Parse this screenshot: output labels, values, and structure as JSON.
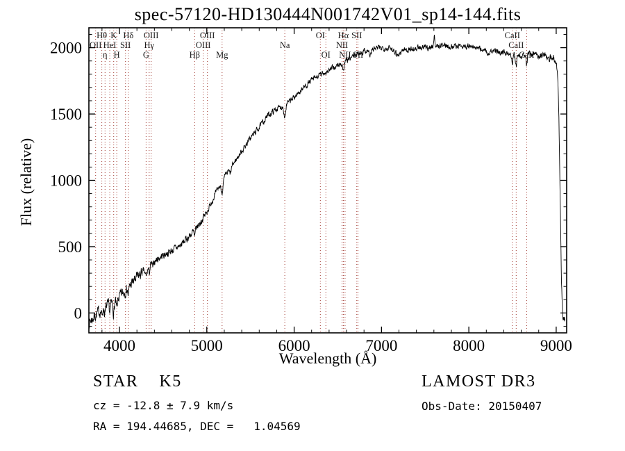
{
  "title": "spec-57120-HD130444N001742V01_sp14-144.fits",
  "annotations": {
    "class_label": "STAR    K5",
    "survey": "LAMOST DR3",
    "cz": "cz = -12.8 ± 7.9 km/s",
    "obs_date": "Obs-Date: 20150407",
    "coords": "RA = 194.44685, DEC =   1.04569"
  },
  "chart_data": {
    "type": "line",
    "title": "spec-57120-HD130444N001742V01_sp14-144.fits",
    "xlabel": "Wavelength (Å)",
    "ylabel": "Flux (relative)",
    "xlim": [
      3650,
      9120
    ],
    "ylim": [
      -150,
      2150
    ],
    "xticks": [
      4000,
      5000,
      6000,
      7000,
      8000,
      9000
    ],
    "yticks": [
      0,
      500,
      1000,
      1500,
      2000
    ],
    "x_minor_step": 200,
    "y_minor_step": 100,
    "grid": false,
    "legend": "none",
    "series_color": "#000000",
    "marker_color": "#a33b33",
    "noise_seed": 7,
    "noise_bands": [
      {
        "max": 4250,
        "amp": 40
      },
      {
        "max": 5000,
        "amp": 26
      },
      {
        "max": 8800,
        "amp": 20
      },
      {
        "max": 9200,
        "amp": 26
      }
    ],
    "continuum": [
      [
        3650,
        -70
      ],
      [
        3690,
        -45
      ],
      [
        3720,
        -20
      ],
      [
        3760,
        5
      ],
      [
        3800,
        25
      ],
      [
        3850,
        45
      ],
      [
        3900,
        65
      ],
      [
        3950,
        85
      ],
      [
        4000,
        120
      ],
      [
        4100,
        195
      ],
      [
        4200,
        265
      ],
      [
        4300,
        330
      ],
      [
        4400,
        390
      ],
      [
        4500,
        435
      ],
      [
        4600,
        470
      ],
      [
        4700,
        510
      ],
      [
        4800,
        580
      ],
      [
        4900,
        655
      ],
      [
        5000,
        760
      ],
      [
        5100,
        900
      ],
      [
        5200,
        1020
      ],
      [
        5300,
        1120
      ],
      [
        5400,
        1220
      ],
      [
        5500,
        1320
      ],
      [
        5600,
        1400
      ],
      [
        5700,
        1490
      ],
      [
        5800,
        1540
      ],
      [
        5900,
        1565
      ],
      [
        6000,
        1625
      ],
      [
        6100,
        1695
      ],
      [
        6200,
        1755
      ],
      [
        6300,
        1795
      ],
      [
        6400,
        1830
      ],
      [
        6500,
        1865
      ],
      [
        6600,
        1900
      ],
      [
        6700,
        1945
      ],
      [
        6800,
        1975
      ],
      [
        6900,
        1990
      ],
      [
        7000,
        2000
      ],
      [
        7100,
        1995
      ],
      [
        7200,
        1985
      ],
      [
        7300,
        1985
      ],
      [
        7400,
        1995
      ],
      [
        7500,
        2000
      ],
      [
        7600,
        2005
      ],
      [
        7700,
        2020
      ],
      [
        7800,
        2010
      ],
      [
        7900,
        2015
      ],
      [
        8000,
        2010
      ],
      [
        8100,
        1995
      ],
      [
        8200,
        1985
      ],
      [
        8300,
        1975
      ],
      [
        8400,
        1965
      ],
      [
        8500,
        1950
      ],
      [
        8600,
        1945
      ],
      [
        8700,
        1950
      ],
      [
        8800,
        1945
      ],
      [
        8900,
        1935
      ],
      [
        8950,
        1925
      ],
      [
        9000,
        1905
      ],
      [
        9015,
        1820
      ],
      [
        9030,
        1500
      ],
      [
        9045,
        900
      ],
      [
        9060,
        250
      ],
      [
        9075,
        -30
      ],
      [
        9100,
        -60
      ]
    ],
    "features": [
      {
        "wl": 3799,
        "depth": 45,
        "width": 6
      },
      {
        "wl": 3835,
        "depth": 45,
        "width": 6
      },
      {
        "wl": 3889,
        "depth": 50,
        "width": 6
      },
      {
        "wl": 3934,
        "depth": 75,
        "width": 7
      },
      {
        "wl": 3969,
        "depth": 75,
        "width": 7
      },
      {
        "wl": 4102,
        "depth": 60,
        "width": 7
      },
      {
        "wl": 4305,
        "depth": 55,
        "width": 12
      },
      {
        "wl": 4341,
        "depth": 50,
        "width": 7
      },
      {
        "wl": 4383,
        "depth": 40,
        "width": 6
      },
      {
        "wl": 4861,
        "depth": 55,
        "width": 7
      },
      {
        "wl": 5175,
        "depth": 75,
        "width": 11
      },
      {
        "wl": 5270,
        "depth": 40,
        "width": 9
      },
      {
        "wl": 5893,
        "depth": 85,
        "width": 9
      },
      {
        "wl": 6563,
        "depth": 65,
        "width": 7
      },
      {
        "wl": 6870,
        "depth": 45,
        "width": 12
      },
      {
        "wl": 7190,
        "depth": 40,
        "width": 25
      },
      {
        "wl": 7605,
        "depth": -110,
        "width": 5
      },
      {
        "wl": 8230,
        "depth": 35,
        "width": 20
      },
      {
        "wl": 8498,
        "depth": 60,
        "width": 6
      },
      {
        "wl": 8542,
        "depth": 85,
        "width": 7
      },
      {
        "wl": 8662,
        "depth": 75,
        "width": 7
      }
    ],
    "spectral_lines": [
      {
        "wl": 3727,
        "label": "OII",
        "row": 2
      },
      {
        "wl": 3798,
        "label": "Hθ",
        "row": 1
      },
      {
        "wl": 3835,
        "label": "η",
        "row": 3
      },
      {
        "wl": 3889,
        "label": "HeI",
        "row": 2
      },
      {
        "wl": 3934,
        "label": "K",
        "row": 1
      },
      {
        "wl": 3969,
        "label": "H",
        "row": 3
      },
      {
        "wl": 4069,
        "label": "SII",
        "row": 2
      },
      {
        "wl": 4102,
        "label": "Hδ",
        "row": 1
      },
      {
        "wl": 4305,
        "label": "G",
        "row": 3
      },
      {
        "wl": 4340,
        "label": "Hγ",
        "row": 2
      },
      {
        "wl": 4363,
        "label": "OIII",
        "row": 1
      },
      {
        "wl": 4861,
        "label": "Hβ",
        "row": 3
      },
      {
        "wl": 4959,
        "label": "OIII",
        "row": 2
      },
      {
        "wl": 5007,
        "label": "OIII",
        "row": 1
      },
      {
        "wl": 5175,
        "label": "Mg",
        "row": 3
      },
      {
        "wl": 5893,
        "label": "Na",
        "row": 2
      },
      {
        "wl": 6300,
        "label": "OI",
        "row": 1
      },
      {
        "wl": 6363,
        "label": "OI",
        "row": 3
      },
      {
        "wl": 6548,
        "label": "NII",
        "row": 2
      },
      {
        "wl": 6563,
        "label": "Hα",
        "row": 1
      },
      {
        "wl": 6583,
        "label": "NII",
        "row": 3
      },
      {
        "wl": 6717,
        "label": "SII",
        "row": 1
      },
      {
        "wl": 6731,
        "label": "SII",
        "row": 3
      },
      {
        "wl": 8498,
        "label": "CaII",
        "row": 1
      },
      {
        "wl": 8542,
        "label": "CaII",
        "row": 2
      },
      {
        "wl": 8662,
        "label": "CaII",
        "row": 3
      }
    ]
  }
}
